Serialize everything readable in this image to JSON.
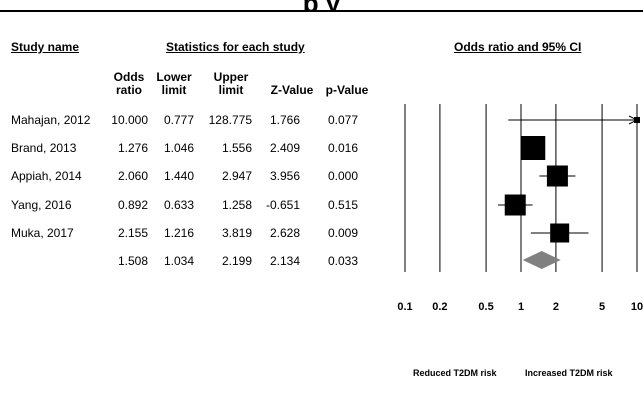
{
  "title_fragment": "p          y",
  "headers": {
    "study_name": "Study name",
    "statistics": "Statistics for each study",
    "odds_ci": "Odds ratio and 95% CI"
  },
  "columns": {
    "odds": [
      "Odds",
      "ratio"
    ],
    "lower": [
      "Lower",
      "limit"
    ],
    "upper": [
      "Upper",
      "limit"
    ],
    "z": "Z-Value",
    "p": "p-Value"
  },
  "rows": [
    {
      "study": "Mahajan, 2012",
      "or": "10.000",
      "lower": "0.777",
      "upper": "128.775",
      "z": "1.766",
      "p": "0.077"
    },
    {
      "study": "Brand, 2013",
      "or": "1.276",
      "lower": "1.046",
      "upper": "1.556",
      "z": "2.409",
      "p": "0.016"
    },
    {
      "study": "Appiah, 2014",
      "or": "2.060",
      "lower": "1.440",
      "upper": "2.947",
      "z": "3.956",
      "p": "0.000"
    },
    {
      "study": "Yang, 2016",
      "or": "0.892",
      "lower": "0.633",
      "upper": "1.258",
      "z": "-0.651",
      "p": "0.515"
    },
    {
      "study": "Muka, 2017",
      "or": "2.155",
      "lower": "1.216",
      "upper": "3.819",
      "z": "2.628",
      "p": "0.009"
    }
  ],
  "summary": {
    "or": "1.508",
    "lower": "1.034",
    "upper": "2.199",
    "z": "2.134",
    "p": "0.033"
  },
  "footer": {
    "left": "Reduced T2DM risk",
    "right": "Increased T2DM risk"
  },
  "chart_data": {
    "type": "scatter",
    "scale": "log",
    "xlim": [
      0.1,
      10
    ],
    "x_ticks": [
      "0.1",
      "0.2",
      "0.5",
      "1",
      "2",
      "5",
      "10"
    ],
    "reference_line": 1,
    "studies": [
      {
        "name": "Mahajan, 2012",
        "or": 10.0,
        "lower": 0.777,
        "upper": 128.775,
        "marker_weight": 0.1,
        "clipped_right": true
      },
      {
        "name": "Brand, 2013",
        "or": 1.276,
        "lower": 1.046,
        "upper": 1.556,
        "marker_weight": 1.0
      },
      {
        "name": "Appiah, 2014",
        "or": 2.06,
        "lower": 1.44,
        "upper": 2.947,
        "marker_weight": 0.85
      },
      {
        "name": "Yang, 2016",
        "or": 0.892,
        "lower": 0.633,
        "upper": 1.258,
        "marker_weight": 0.85
      },
      {
        "name": "Muka, 2017",
        "or": 2.155,
        "lower": 1.216,
        "upper": 3.819,
        "marker_weight": 0.75
      }
    ],
    "pooled": {
      "or": 1.508,
      "lower": 1.034,
      "upper": 2.199
    },
    "colors": {
      "study_marker": "#000000",
      "pooled_diamond": "#808080"
    }
  }
}
